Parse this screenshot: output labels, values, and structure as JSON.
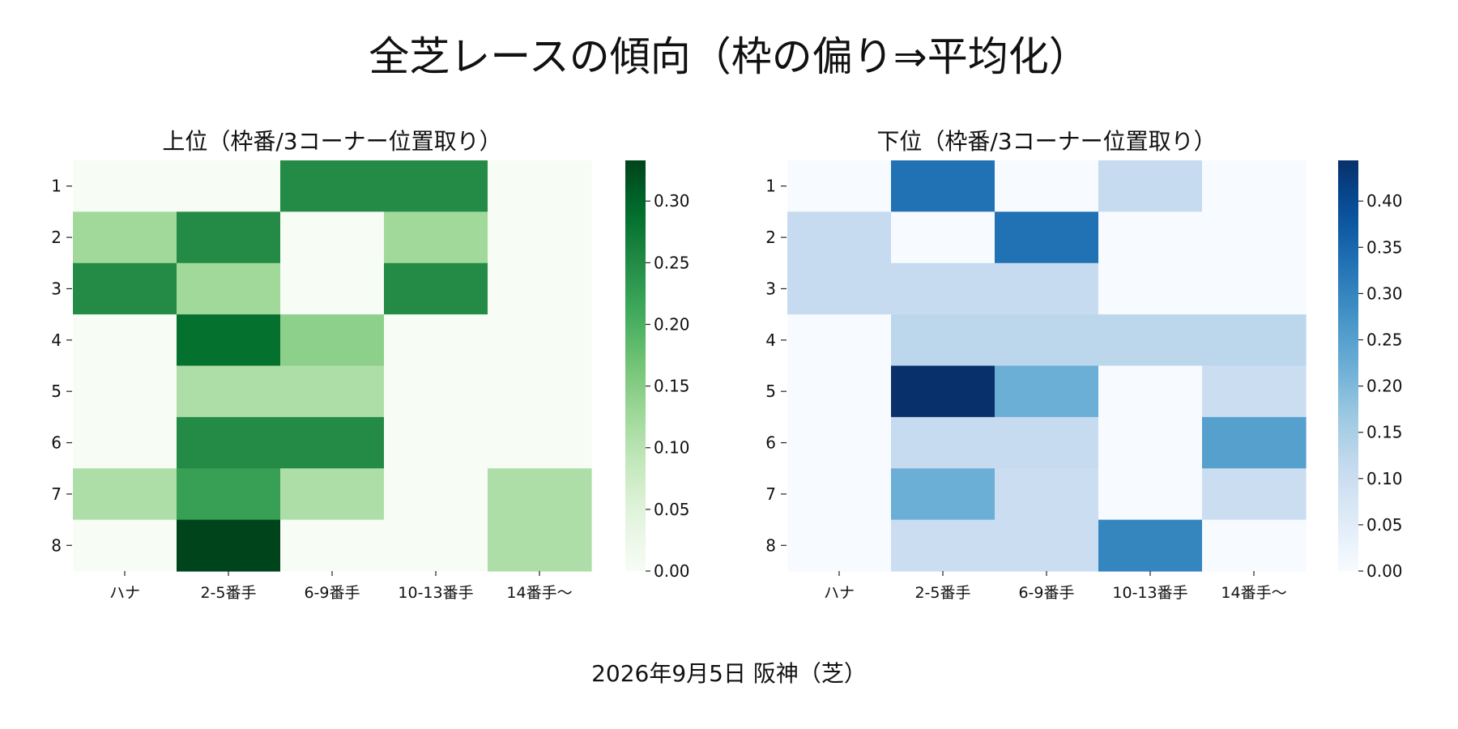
{
  "title": "全芝レースの傾向（枠の偏り⇒平均化）",
  "caption": "2026年9月5日 阪神（芝）",
  "chart_data": [
    {
      "type": "heatmap",
      "title": "上位（枠番/3コーナー位置取り）",
      "colormap": "Greens",
      "x_categories": [
        "ハナ",
        "2-5番手",
        "6-9番手",
        "10-13番手",
        "14番手〜"
      ],
      "y_categories": [
        "1",
        "2",
        "3",
        "4",
        "5",
        "6",
        "7",
        "8"
      ],
      "values": [
        [
          0,
          0,
          0.25,
          0.25,
          0
        ],
        [
          0.125,
          0.25,
          0,
          0.125,
          0
        ],
        [
          0.25,
          0.125,
          0,
          0.25,
          0
        ],
        [
          0,
          0.286,
          0.143,
          0,
          0
        ],
        [
          0,
          0.111,
          0.111,
          0,
          0
        ],
        [
          0,
          0.25,
          0.25,
          0,
          0
        ],
        [
          0.111,
          0.222,
          0.111,
          0,
          0.111
        ],
        [
          0,
          0.333,
          0,
          0,
          0.111
        ]
      ],
      "vmin": 0,
      "vmax": 0.333,
      "colorbar_ticks": [
        "0.00",
        "0.05",
        "0.10",
        "0.15",
        "0.20",
        "0.25",
        "0.30"
      ],
      "colorbar_tick_values": [
        0,
        0.05,
        0.1,
        0.15,
        0.2,
        0.25,
        0.3
      ]
    },
    {
      "type": "heatmap",
      "title": "下位（枠番/3コーナー位置取り）",
      "colormap": "Blues",
      "x_categories": [
        "ハナ",
        "2-5番手",
        "6-9番手",
        "10-13番手",
        "14番手〜"
      ],
      "y_categories": [
        "1",
        "2",
        "3",
        "4",
        "5",
        "6",
        "7",
        "8"
      ],
      "values": [
        [
          0,
          0.333,
          0,
          0.111,
          0
        ],
        [
          0.111,
          0,
          0.333,
          0,
          0
        ],
        [
          0.111,
          0.111,
          0.111,
          0,
          0
        ],
        [
          0,
          0.125,
          0.125,
          0.125,
          0.125
        ],
        [
          0,
          0.444,
          0.222,
          0,
          0.1
        ],
        [
          0,
          0.111,
          0.111,
          0,
          0.25
        ],
        [
          0,
          0.222,
          0.1,
          0,
          0.1
        ],
        [
          0,
          0.1,
          0.1,
          0.3,
          0
        ]
      ],
      "vmin": 0,
      "vmax": 0.444,
      "colorbar_ticks": [
        "0.00",
        "0.05",
        "0.10",
        "0.15",
        "0.20",
        "0.25",
        "0.30",
        "0.35",
        "0.40"
      ],
      "colorbar_tick_values": [
        0,
        0.05,
        0.1,
        0.15,
        0.2,
        0.25,
        0.3,
        0.35,
        0.4
      ]
    }
  ]
}
